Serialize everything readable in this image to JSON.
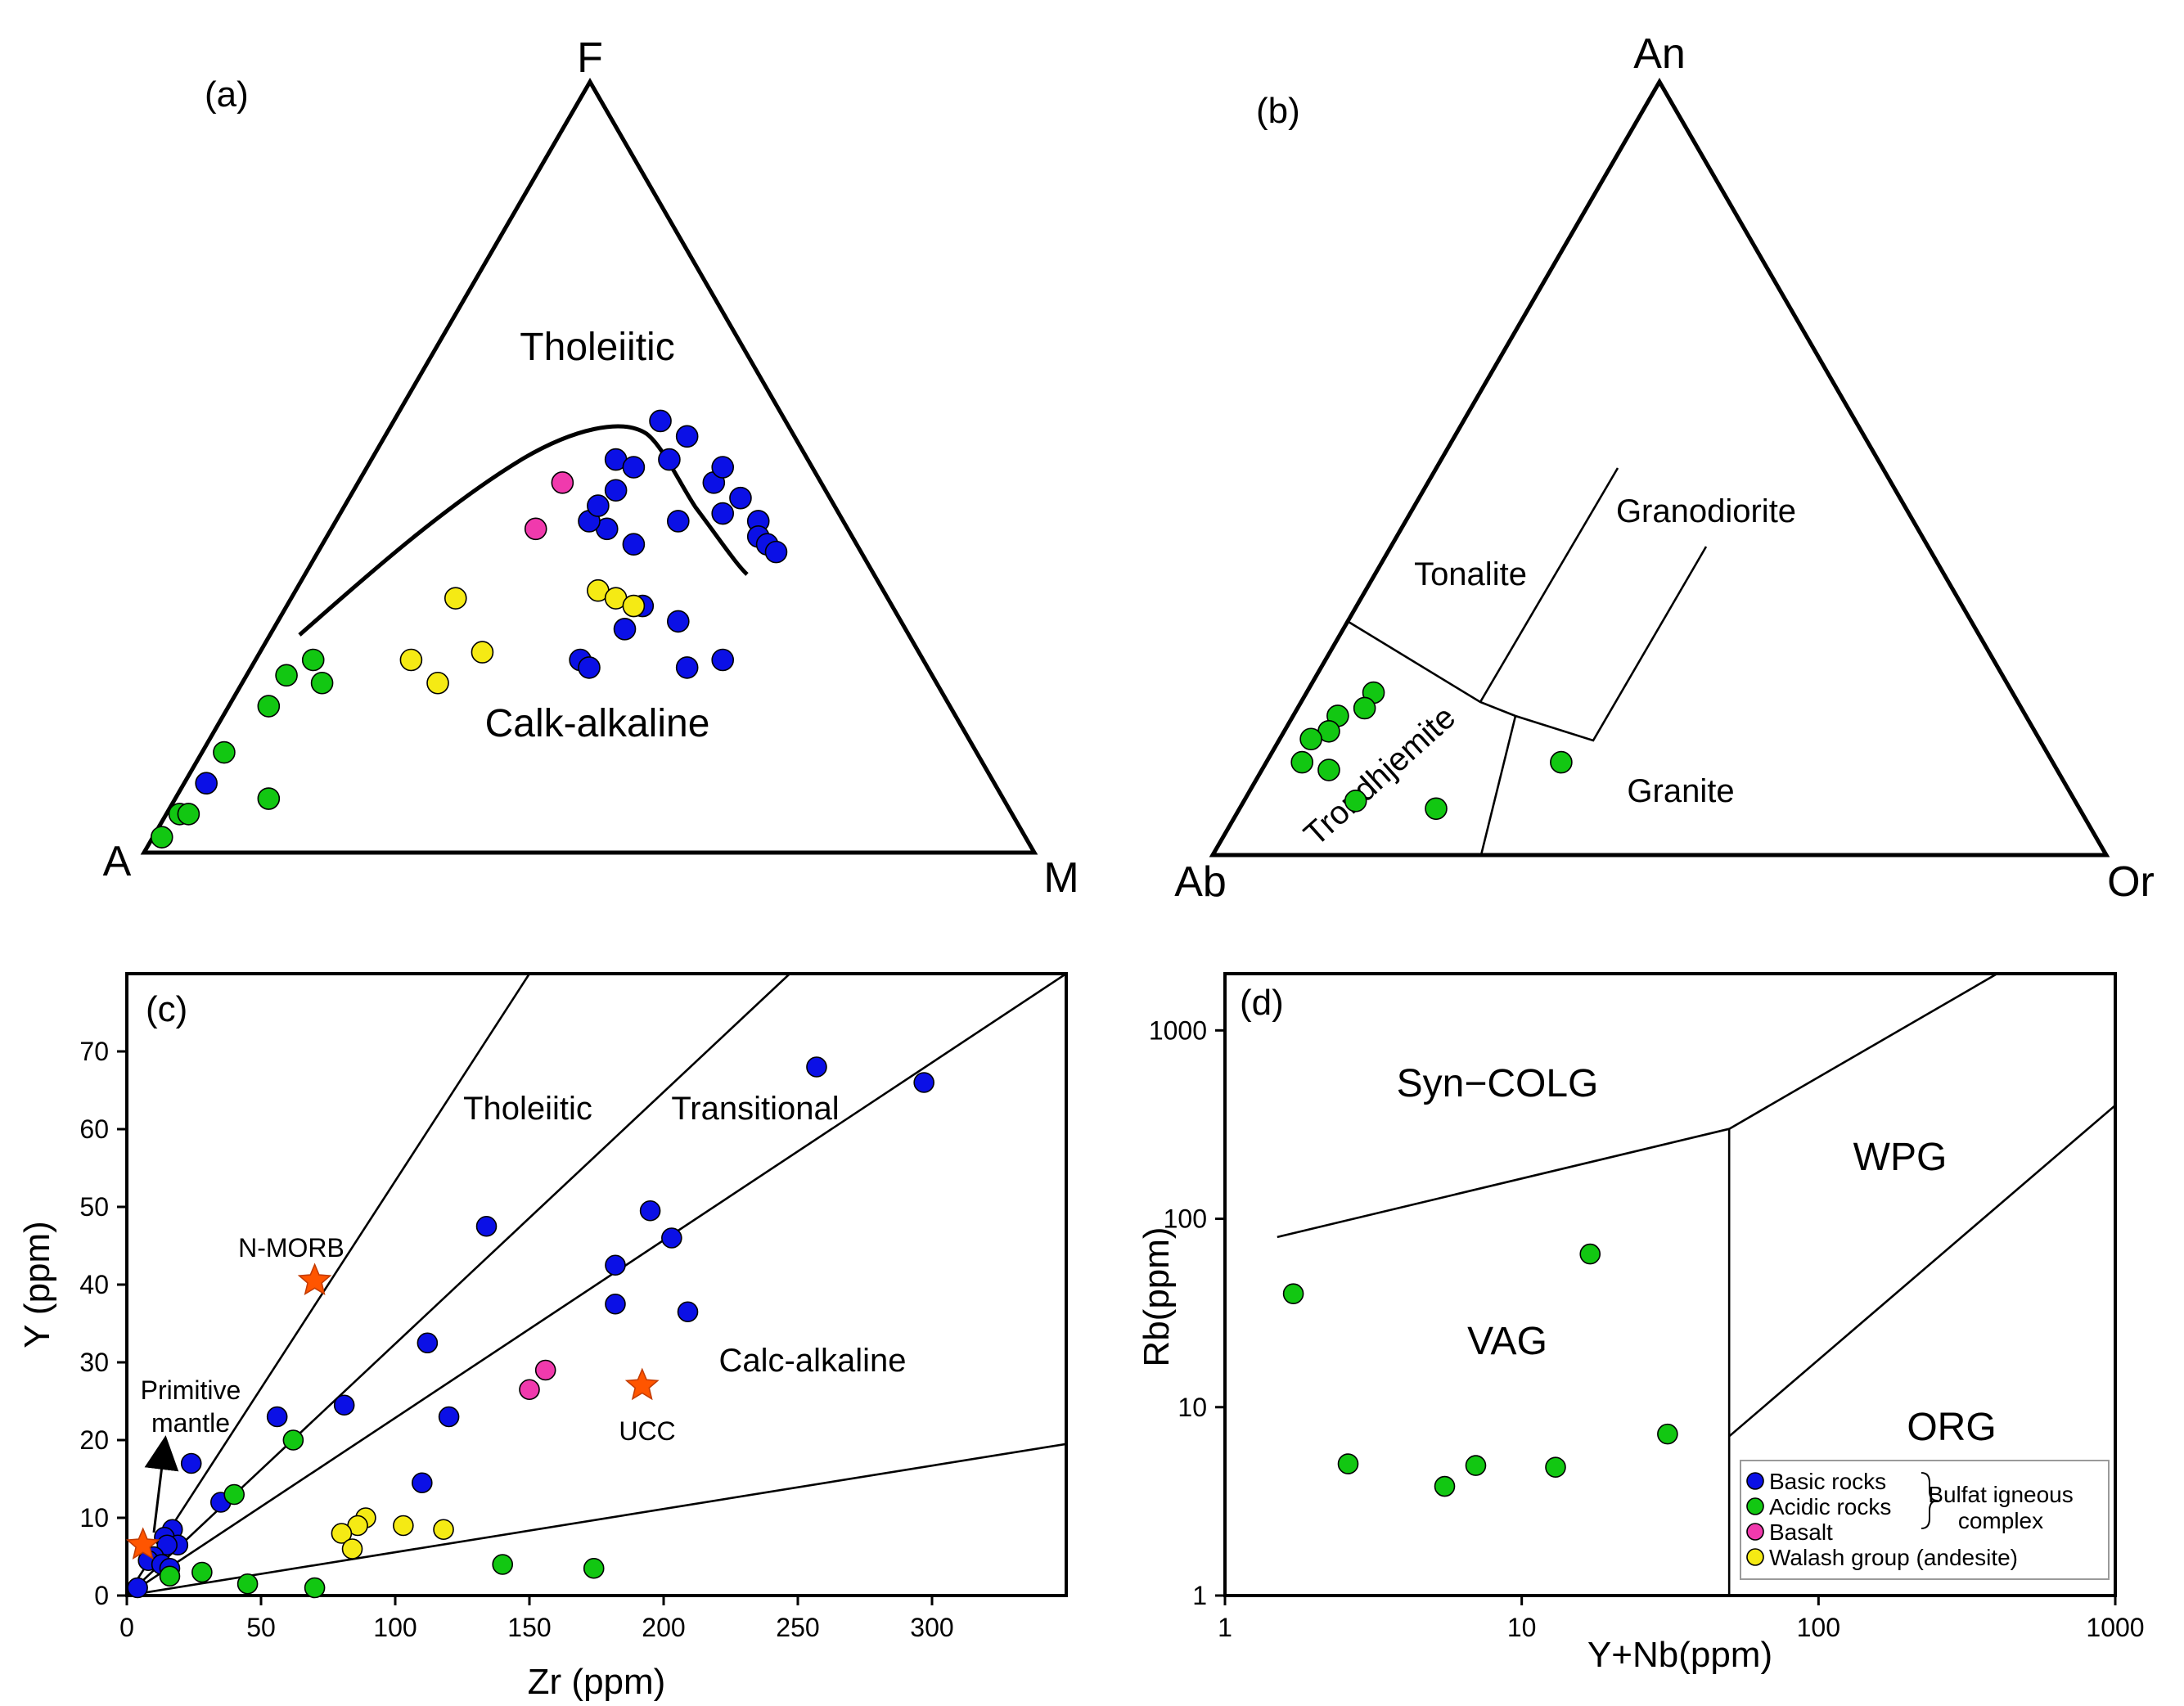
{
  "colors": {
    "basic": "#0b10e6",
    "acidic": "#12c712",
    "basalt": "#f03aad",
    "walash": "#f5ea14",
    "star": "#ff5500"
  },
  "legend": {
    "items": [
      {
        "key": "basic",
        "label": "Basic rocks"
      },
      {
        "key": "acidic",
        "label": "Acidic rocks"
      },
      {
        "key": "basalt",
        "label": "Basalt"
      },
      {
        "key": "walash",
        "label": "Walash group (andesite)"
      }
    ],
    "group_label_1": "Bulfat igneous",
    "group_label_2": "complex"
  },
  "panel_a": {
    "tag": "(a)",
    "vertices": {
      "top": "F",
      "left": "A",
      "right": "M"
    },
    "fields": {
      "upper": "Tholeiitic",
      "lower": "Calk-alkaline"
    }
  },
  "panel_b": {
    "tag": "(b)",
    "vertices": {
      "top": "An",
      "left": "Ab",
      "right": "Or"
    },
    "fields": {
      "tonalite": "Tonalite",
      "granodiorite": "Granodiorite",
      "trondhjemite": "Trondhjemite",
      "granite": "Granite"
    }
  },
  "panel_c": {
    "tag": "(c)",
    "xlabel": "Zr (ppm)",
    "ylabel": "Y (ppm)",
    "fields": {
      "tholeiitic": "Tholeiitic",
      "transitional": "Transitional",
      "calc_alkaline": "Calc-alkaline"
    },
    "annotations": {
      "nmorb": "N-MORB",
      "pm1": "Primitive",
      "pm2": "mantle",
      "ucc": "UCC"
    }
  },
  "panel_d": {
    "tag": "(d)",
    "xlabel": "Y+Nb(ppm)",
    "ylabel": "Rb(ppm)",
    "fields": {
      "syn_colg": "Syn−COLG",
      "wpg": "WPG",
      "vag": "VAG",
      "org": "ORG"
    }
  },
  "chart_data": [
    {
      "type": "scatter",
      "id": "a",
      "ternary": true,
      "vertices": [
        "F",
        "A",
        "M"
      ],
      "boundary_curve": [
        [
          0.0,
          0.22,
          0.78
        ],
        [
          0.0,
          0.24,
          0.76
        ],
        [
          0.0,
          0.29,
          0.71
        ]
      ],
      "boundary_curve_pts": [
        [
          0.29,
          0.52
        ],
        [
          0.35,
          0.43
        ],
        [
          0.4,
          0.39
        ],
        [
          0.46,
          0.35
        ],
        [
          0.5,
          0.37
        ],
        [
          0.54,
          0.43
        ],
        [
          0.58,
          0.5
        ],
        [
          0.62,
          0.48
        ]
      ],
      "series": [
        {
          "name": "Basic rocks",
          "key": "basic",
          "points": [
            [
              0.53,
              0.51
            ],
            [
              0.55,
              0.5
            ],
            [
              0.53,
              0.47
            ],
            [
              0.59,
              0.51
            ],
            [
              0.58,
              0.56
            ],
            [
              0.61,
              0.54
            ],
            [
              0.52,
              0.42
            ],
            [
              0.5,
              0.43
            ],
            [
              0.51,
              0.45
            ],
            [
              0.55,
              0.4
            ],
            [
              0.6,
              0.43
            ],
            [
              0.64,
              0.48
            ],
            [
              0.65,
              0.5
            ],
            [
              0.65,
              0.44
            ],
            [
              0.67,
              0.46
            ],
            [
              0.69,
              0.43
            ],
            [
              0.69,
              0.41
            ],
            [
              0.7,
              0.4
            ],
            [
              0.71,
              0.39
            ],
            [
              0.56,
              0.32
            ],
            [
              0.6,
              0.3
            ],
            [
              0.61,
              0.24
            ],
            [
              0.65,
              0.25
            ],
            [
              0.54,
              0.29
            ],
            [
              0.49,
              0.25
            ],
            [
              0.5,
              0.24
            ],
            [
              0.07,
              0.09
            ]
          ]
        },
        {
          "name": "Acidic rocks",
          "key": "acidic",
          "points": [
            [
              0.02,
              0.02
            ],
            [
              0.04,
              0.05
            ],
            [
              0.05,
              0.05
            ],
            [
              0.09,
              0.13
            ],
            [
              0.14,
              0.19
            ],
            [
              0.16,
              0.23
            ],
            [
              0.19,
              0.25
            ],
            [
              0.2,
              0.22
            ],
            [
              0.14,
              0.07
            ]
          ]
        },
        {
          "name": "Basalt",
          "key": "basalt",
          "points": [
            [
              0.47,
              0.48
            ],
            [
              0.44,
              0.42
            ]
          ]
        },
        {
          "name": "Walash group (andesite)",
          "key": "walash",
          "points": [
            [
              0.35,
              0.33
            ],
            [
              0.3,
              0.25
            ],
            [
              0.33,
              0.22
            ],
            [
              0.38,
              0.26
            ],
            [
              0.51,
              0.34
            ],
            [
              0.53,
              0.33
            ],
            [
              0.55,
              0.32
            ]
          ]
        }
      ]
    },
    {
      "type": "scatter",
      "id": "b",
      "ternary": true,
      "vertices": [
        "An",
        "Ab",
        "Or"
      ],
      "series": [
        {
          "name": "Acidic rocks",
          "key": "acidic",
          "points": [
            [
              0.18,
              0.21
            ],
            [
              0.17,
              0.19
            ],
            [
              0.14,
              0.18
            ],
            [
              0.13,
              0.16
            ],
            [
              0.11,
              0.15
            ],
            [
              0.1,
              0.12
            ],
            [
              0.13,
              0.11
            ],
            [
              0.16,
              0.07
            ],
            [
              0.25,
              0.06
            ],
            [
              0.39,
              0.12
            ]
          ]
        }
      ]
    },
    {
      "type": "scatter",
      "id": "c",
      "x_label": "Zr (ppm)",
      "y_label": "Y (ppm)",
      "xlim": [
        0,
        350
      ],
      "ylim": [
        0,
        80
      ],
      "x_ticks": [
        0,
        50,
        100,
        150,
        200,
        250,
        300
      ],
      "y_ticks": [
        0,
        10,
        20,
        30,
        40,
        50,
        60,
        70
      ],
      "series": [
        {
          "name": "Basic rocks",
          "key": "basic",
          "points": [
            [
              257,
              68
            ],
            [
              297,
              66
            ],
            [
              195,
              49.5
            ],
            [
              203,
              46
            ],
            [
              134,
              47.5
            ],
            [
              182,
              42.5
            ],
            [
              182,
              37.5
            ],
            [
              209,
              36.5
            ],
            [
              112,
              32.5
            ],
            [
              81,
              24.5
            ],
            [
              120,
              23
            ],
            [
              56,
              23
            ],
            [
              110,
              14.5
            ],
            [
              24,
              17
            ],
            [
              35,
              12
            ],
            [
              17,
              8.5
            ],
            [
              14,
              7.5
            ],
            [
              19,
              6.5
            ],
            [
              15,
              6.5
            ],
            [
              10,
              5
            ],
            [
              8,
              4.5
            ],
            [
              13,
              4
            ],
            [
              16,
              3.5
            ],
            [
              4,
              1
            ]
          ]
        },
        {
          "name": "Acidic rocks",
          "key": "acidic",
          "points": [
            [
              62,
              20
            ],
            [
              40,
              13
            ],
            [
              16,
              2.5
            ],
            [
              28,
              3
            ],
            [
              45,
              1.5
            ],
            [
              70,
              1
            ],
            [
              140,
              4
            ],
            [
              174,
              3.5
            ]
          ]
        },
        {
          "name": "Basalt",
          "key": "basalt",
          "points": [
            [
              156,
              29
            ],
            [
              150,
              26.5
            ]
          ]
        },
        {
          "name": "Walash group (andesite)",
          "key": "walash",
          "points": [
            [
              89,
              10
            ],
            [
              86,
              9
            ],
            [
              103,
              9
            ],
            [
              118,
              8.5
            ],
            [
              80,
              8
            ],
            [
              84,
              6
            ]
          ]
        },
        {
          "name": "N-MORB",
          "key": "star",
          "points": [
            [
              70,
              40.5
            ]
          ]
        },
        {
          "name": "UCC",
          "key": "star",
          "points": [
            [
              192,
              27
            ]
          ]
        },
        {
          "name": "Primitive mantle",
          "key": "star",
          "points": [
            [
              6,
              6.5
            ]
          ]
        }
      ],
      "lines": [
        [
          [
            0,
            0
          ],
          [
            150,
            80
          ]
        ],
        [
          [
            0,
            0
          ],
          [
            247,
            80
          ]
        ],
        [
          [
            0,
            0
          ],
          [
            350,
            80
          ]
        ],
        [
          [
            0,
            0
          ],
          [
            350,
            19.5
          ]
        ]
      ]
    },
    {
      "type": "scatter",
      "id": "d",
      "x_label": "Y+Nb(ppm)",
      "y_label": "Rb(ppm)",
      "x_scale": "log",
      "y_scale": "log",
      "xlim": [
        1,
        1000
      ],
      "ylim": [
        1,
        2000
      ],
      "x_ticks": [
        1,
        10,
        100,
        1000
      ],
      "y_ticks": [
        1,
        10,
        100,
        1000
      ],
      "series": [
        {
          "name": "Acidic rocks",
          "key": "acidic",
          "points": [
            [
              1.7,
              40
            ],
            [
              17,
              65
            ],
            [
              2.6,
              5
            ],
            [
              5.5,
              3.8
            ],
            [
              7,
              4.9
            ],
            [
              13,
              4.8
            ],
            [
              31,
              7.2
            ]
          ]
        }
      ],
      "lines": [
        [
          [
            1.5,
            80
          ],
          [
            50,
            300
          ]
        ],
        [
          [
            50,
            300
          ],
          [
            50,
            1
          ]
        ],
        [
          [
            50,
            300
          ],
          [
            400,
            2000
          ]
        ],
        [
          [
            50,
            7
          ],
          [
            1000,
            400
          ]
        ]
      ]
    }
  ]
}
